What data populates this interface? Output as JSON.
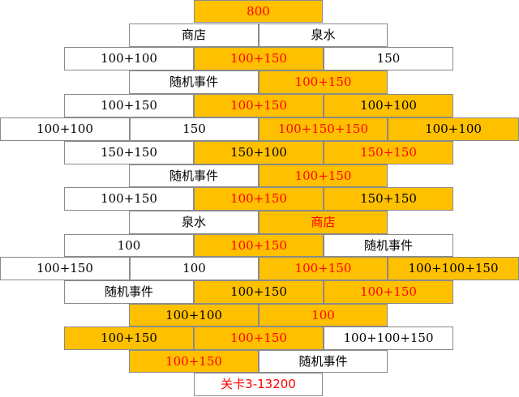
{
  "colors": {
    "gold": "#FFC000",
    "white": "#FFFFFF",
    "red": "#FF0000",
    "black": "#000000"
  },
  "rows": [
    [
      {
        "text": "800",
        "fill": "gold",
        "color": "red"
      }
    ],
    [
      {
        "text": "商店",
        "fill": "white",
        "color": "black"
      },
      {
        "text": "泉水",
        "fill": "white",
        "color": "black"
      }
    ],
    [
      {
        "text": "100+100",
        "fill": "white",
        "color": "black"
      },
      {
        "text": "100+150",
        "fill": "gold",
        "color": "red"
      },
      {
        "text": "150",
        "fill": "white",
        "color": "black"
      }
    ],
    [
      {
        "text": "随机事件",
        "fill": "white",
        "color": "black"
      },
      {
        "text": "100+150",
        "fill": "gold",
        "color": "red"
      }
    ],
    [
      {
        "text": "100+150",
        "fill": "white",
        "color": "black"
      },
      {
        "text": "100+150",
        "fill": "gold",
        "color": "red"
      },
      {
        "text": "100+100",
        "fill": "gold",
        "color": "black"
      }
    ],
    [
      {
        "text": "100+100",
        "fill": "white",
        "color": "black"
      },
      {
        "text": "150",
        "fill": "white",
        "color": "black"
      },
      {
        "text": "100+150+150",
        "fill": "gold",
        "color": "red"
      },
      {
        "text": "100+100",
        "fill": "gold",
        "color": "black"
      }
    ],
    [
      {
        "text": "150+150",
        "fill": "white",
        "color": "black"
      },
      {
        "text": "150+100",
        "fill": "gold",
        "color": "black"
      },
      {
        "text": "150+150",
        "fill": "gold",
        "color": "red"
      }
    ],
    [
      {
        "text": "随机事件",
        "fill": "white",
        "color": "black"
      },
      {
        "text": "100+150",
        "fill": "gold",
        "color": "red"
      }
    ],
    [
      {
        "text": "100+150",
        "fill": "white",
        "color": "black"
      },
      {
        "text": "100+150",
        "fill": "gold",
        "color": "red"
      },
      {
        "text": "150+150",
        "fill": "gold",
        "color": "black"
      }
    ],
    [
      {
        "text": "泉水",
        "fill": "white",
        "color": "black"
      },
      {
        "text": "商店",
        "fill": "gold",
        "color": "red"
      }
    ],
    [
      {
        "text": "100",
        "fill": "white",
        "color": "black"
      },
      {
        "text": "100+150",
        "fill": "gold",
        "color": "red"
      },
      {
        "text": "随机事件",
        "fill": "white",
        "color": "black"
      }
    ],
    [
      {
        "text": "100+150",
        "fill": "white",
        "color": "black"
      },
      {
        "text": "100",
        "fill": "white",
        "color": "black"
      },
      {
        "text": "100+150",
        "fill": "gold",
        "color": "red"
      },
      {
        "text": "100+100+150",
        "fill": "gold",
        "color": "black"
      }
    ],
    [
      {
        "text": "随机事件",
        "fill": "white",
        "color": "black"
      },
      {
        "text": "100+150",
        "fill": "gold",
        "color": "black"
      },
      {
        "text": "100+150",
        "fill": "gold",
        "color": "red"
      }
    ],
    [
      {
        "text": "100+100",
        "fill": "gold",
        "color": "black"
      },
      {
        "text": "100",
        "fill": "gold",
        "color": "red"
      }
    ],
    [
      {
        "text": "100+150",
        "fill": "gold",
        "color": "black"
      },
      {
        "text": "100+150",
        "fill": "gold",
        "color": "red"
      },
      {
        "text": "100+100+150",
        "fill": "white",
        "color": "black"
      }
    ],
    [
      {
        "text": "100+150",
        "fill": "gold",
        "color": "red"
      },
      {
        "text": "随机事件",
        "fill": "white",
        "color": "black"
      }
    ],
    [
      {
        "text": "关卡3-13200",
        "fill": "white",
        "color": "red"
      }
    ]
  ]
}
